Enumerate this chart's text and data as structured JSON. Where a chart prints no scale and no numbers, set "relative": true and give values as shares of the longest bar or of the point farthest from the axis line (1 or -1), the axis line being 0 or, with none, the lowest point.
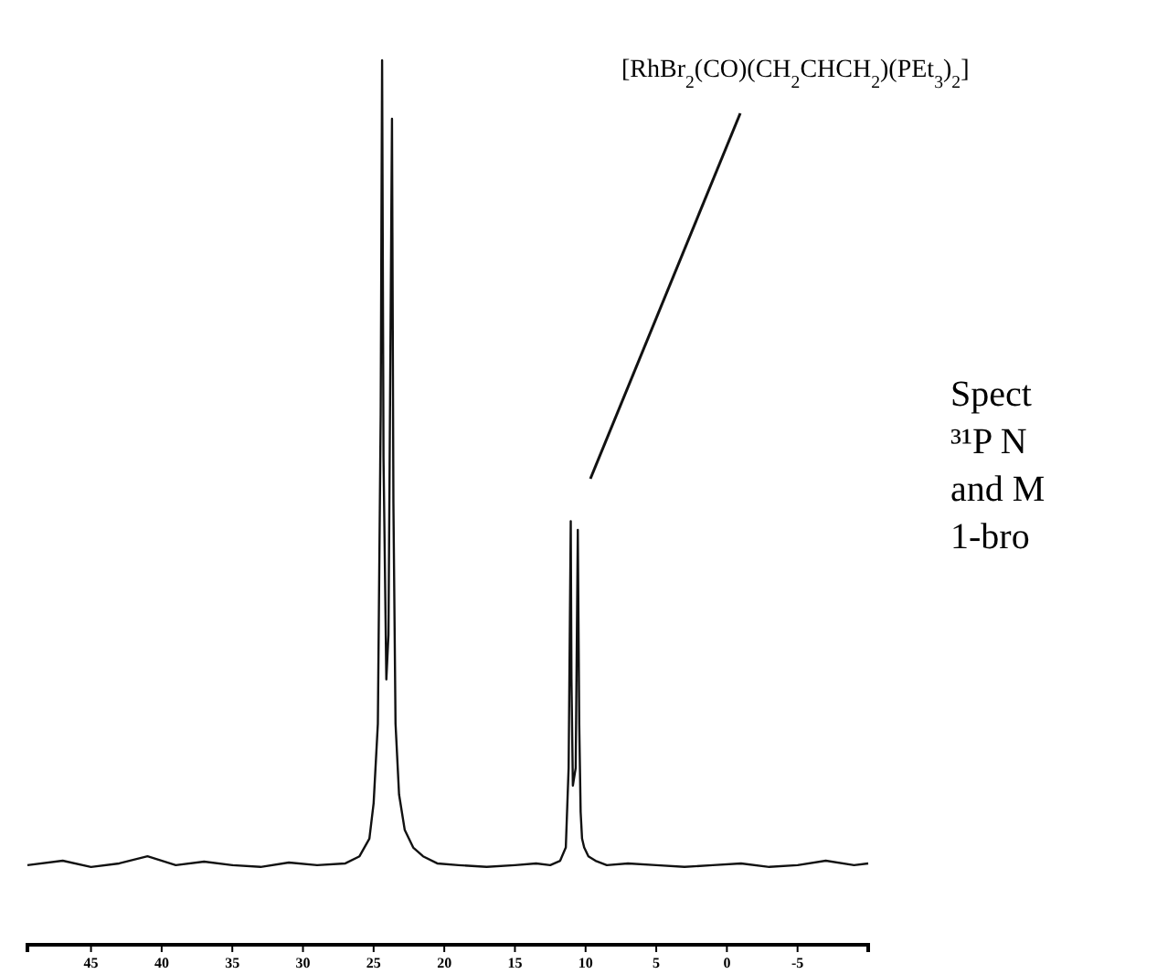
{
  "chart_data": {
    "type": "line",
    "relative": true,
    "color": "#111111",
    "x": [
      49.5,
      47,
      45,
      43,
      41,
      39,
      37,
      35,
      33,
      31,
      29,
      27,
      26,
      25.3,
      25,
      24.7,
      24.5,
      24.4,
      24.3,
      24.1,
      23.95,
      23.8,
      23.7,
      23.6,
      23.45,
      23.2,
      22.8,
      22.2,
      21.5,
      20.5,
      19,
      17,
      15,
      13.5,
      12.5,
      11.8,
      11.4,
      11.2,
      11.05,
      11.0,
      10.9,
      10.7,
      10.55,
      10.45,
      10.35,
      10.25,
      10.1,
      9.8,
      9.3,
      8.5,
      7,
      5,
      3,
      1,
      -1,
      -3,
      -5,
      -7,
      -9,
      -10
    ],
    "values": [
      0.09,
      0.095,
      0.088,
      0.092,
      0.1,
      0.09,
      0.094,
      0.09,
      0.088,
      0.093,
      0.09,
      0.092,
      0.1,
      0.12,
      0.16,
      0.25,
      0.6,
      1.0,
      0.55,
      0.3,
      0.35,
      0.7,
      0.934,
      0.5,
      0.25,
      0.17,
      0.13,
      0.11,
      0.1,
      0.092,
      0.09,
      0.088,
      0.09,
      0.092,
      0.09,
      0.095,
      0.11,
      0.2,
      0.479,
      0.3,
      0.18,
      0.2,
      0.469,
      0.25,
      0.15,
      0.12,
      0.11,
      0.1,
      0.095,
      0.09,
      0.092,
      0.09,
      0.088,
      0.09,
      0.092,
      0.088,
      0.09,
      0.095,
      0.09,
      0.092
    ],
    "xlim": [
      49.5,
      -10
    ],
    "xticks": [
      45,
      40,
      35,
      30,
      25,
      20,
      15,
      10,
      5,
      0,
      -5
    ],
    "annotations": [
      "[RhBr$_{2}$(CO)(CH$_{2}$CHCH$_{2}$)(PEt$_{3}$)$_{2}$]",
      "Spect",
      "³¹P N",
      "and M",
      "1-bro"
    ]
  }
}
